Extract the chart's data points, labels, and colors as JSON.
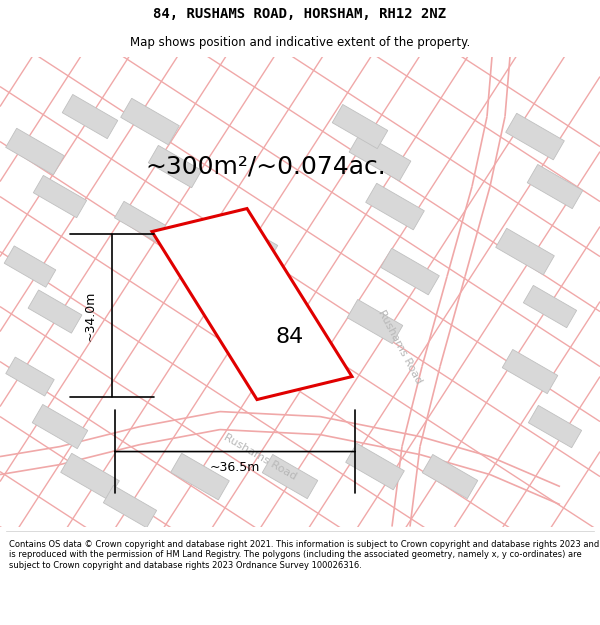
{
  "title": "84, RUSHAMS ROAD, HORSHAM, RH12 2NZ",
  "subtitle": "Map shows position and indicative extent of the property.",
  "area_text": "~300m²/~0.074ac.",
  "label_84": "84",
  "dim_height": "~34.0m",
  "dim_width": "~36.5m",
  "road_label_bottom": "Rushams Road",
  "road_label_right": "Rushams Road",
  "footer": "Contains OS data © Crown copyright and database right 2021. This information is subject to Crown copyright and database rights 2023 and is reproduced with the permission of HM Land Registry. The polygons (including the associated geometry, namely x, y co-ordinates) are subject to Crown copyright and database rights 2023 Ordnance Survey 100026316.",
  "plot_color": "#e00000",
  "building_fill": "#d8d8d8",
  "building_edge": "#c0c0c0",
  "road_line_color": "#f0a8a8",
  "road_text_color": "#b8b8b8",
  "map_bg": "#ffffff",
  "title_fontsize": 10,
  "subtitle_fontsize": 8.5,
  "area_fontsize": 18,
  "label_fontsize": 16,
  "dim_fontsize": 9,
  "footer_fontsize": 6.0
}
